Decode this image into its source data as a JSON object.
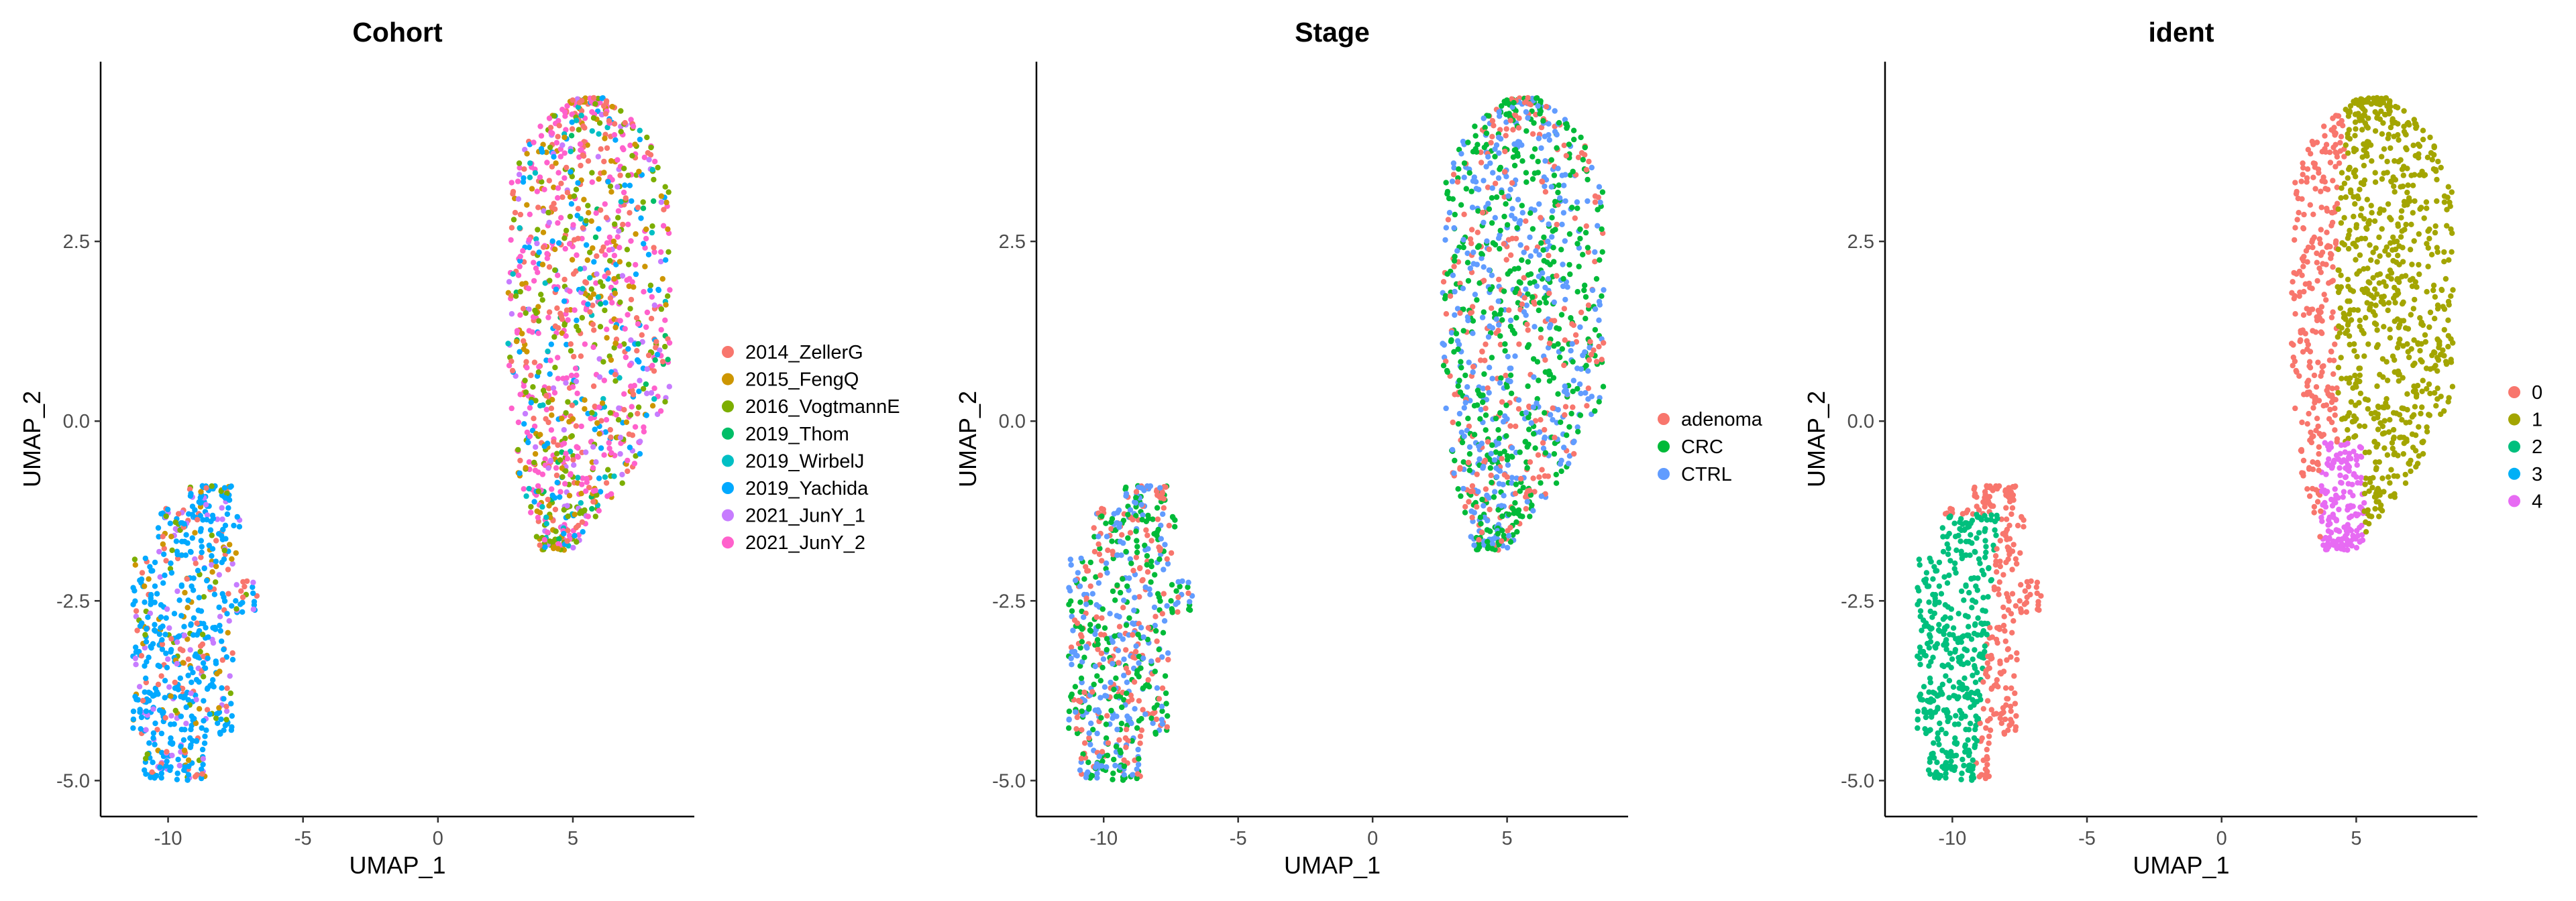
{
  "chart_data": [
    {
      "type": "scatter",
      "title": "Cohort",
      "xlabel": "UMAP_1",
      "ylabel": "UMAP_2",
      "xlim": [
        -12.5,
        9.5
      ],
      "ylim": [
        -5.5,
        5.0
      ],
      "x_ticks": [
        -10,
        -5,
        0,
        5
      ],
      "y_ticks": [
        -5.0,
        -2.5,
        0.0,
        2.5
      ],
      "x_tick_labels": [
        "-10",
        "-5",
        "0",
        "5"
      ],
      "y_tick_labels": [
        "-5.0",
        "-2.5",
        "0.0",
        "2.5"
      ],
      "grid": false,
      "legend_position": "right",
      "series": [
        {
          "name": "2014_ZellerG",
          "color": "#F8766D"
        },
        {
          "name": "2015_FengQ",
          "color": "#CD9600"
        },
        {
          "name": "2016_VogtmannE",
          "color": "#7CAE00"
        },
        {
          "name": "2019_Thom",
          "color": "#00BE67"
        },
        {
          "name": "2019_WirbelJ",
          "color": "#00BFC4"
        },
        {
          "name": "2019_Yachida",
          "color": "#00A9FF"
        },
        {
          "name": "2021_JunY_1",
          "color": "#C77CFF"
        },
        {
          "name": "2021_JunY_2",
          "color": "#FF61CC"
        }
      ]
    },
    {
      "type": "scatter",
      "title": "Stage",
      "xlabel": "UMAP_1",
      "ylabel": "UMAP_2",
      "xlim": [
        -12.5,
        9.5
      ],
      "ylim": [
        -5.5,
        5.0
      ],
      "x_ticks": [
        -10,
        -5,
        0,
        5
      ],
      "y_ticks": [
        -5.0,
        -2.5,
        0.0,
        2.5
      ],
      "x_tick_labels": [
        "-10",
        "-5",
        "0",
        "5"
      ],
      "y_tick_labels": [
        "-5.0",
        "-2.5",
        "0.0",
        "2.5"
      ],
      "grid": false,
      "legend_position": "right",
      "series": [
        {
          "name": "adenoma",
          "color": "#F8766D"
        },
        {
          "name": "CRC",
          "color": "#00BA38"
        },
        {
          "name": "CTRL",
          "color": "#619CFF"
        }
      ]
    },
    {
      "type": "scatter",
      "title": "ident",
      "xlabel": "UMAP_1",
      "ylabel": "UMAP_2",
      "xlim": [
        -12.5,
        9.5
      ],
      "ylim": [
        -5.5,
        5.0
      ],
      "x_ticks": [
        -10,
        -5,
        0,
        5
      ],
      "y_ticks": [
        -5.0,
        -2.5,
        0.0,
        2.5
      ],
      "x_tick_labels": [
        "-10",
        "-5",
        "0",
        "5"
      ],
      "y_tick_labels": [
        "-5.0",
        "-2.5",
        "0.0",
        "2.5"
      ],
      "grid": false,
      "legend_position": "right",
      "series": [
        {
          "name": "0",
          "color": "#F8766D"
        },
        {
          "name": "1",
          "color": "#A3A500"
        },
        {
          "name": "2",
          "color": "#00BF7D"
        },
        {
          "name": "3",
          "color": "#00B0F6"
        },
        {
          "name": "4",
          "color": "#E76BF3"
        }
      ]
    }
  ]
}
